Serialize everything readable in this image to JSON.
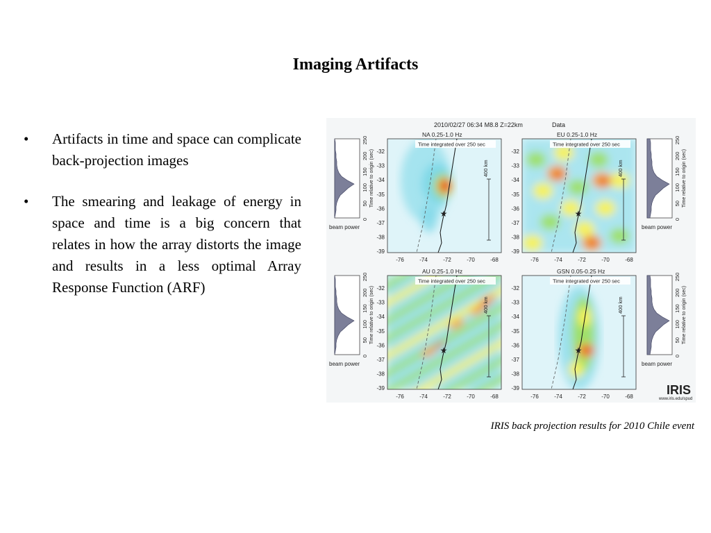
{
  "slide": {
    "title": "Imaging Artifacts",
    "bullets": [
      {
        "marker": "•",
        "text": "Artifacts in time and space can complicate back-projection images"
      },
      {
        "marker": "•",
        "text": "The smearing and leakage of energy in space and time is a big concern that relates in how the array distorts the image and results in a less optimal Array Response Function (ARF)"
      }
    ],
    "caption": "IRIS back projection results for 2010 Chile  event"
  },
  "figure": {
    "header": "2010/02/27 06:34  M8.8  Z=22km",
    "header_right": "Data",
    "integrated_label": "Time integrated over 250 sec",
    "scale_label": "400 km",
    "beam_power_label": "beam power",
    "time_axis_label": "Time relative to origin (sec)",
    "time_ticks": [
      "0",
      "50",
      "100",
      "150",
      "200",
      "250"
    ],
    "lat_ticks": [
      "-32",
      "-33",
      "-34",
      "-35",
      "-36",
      "-37",
      "-38",
      "-39"
    ],
    "lon_ticks": [
      "-76",
      "-74",
      "-72",
      "-70",
      "-68"
    ],
    "logo_text": "IRIS",
    "logo_url_text": "www.iris.edu/spud",
    "panels": [
      {
        "id": "na",
        "label": "NA  0.25-1.0 Hz",
        "pattern": "blob"
      },
      {
        "id": "eu",
        "label": "EU  0.25-1.0 Hz",
        "pattern": "noisy"
      },
      {
        "id": "au",
        "label": "AU  0.25-1.0 Hz",
        "pattern": "stripes"
      },
      {
        "id": "gsn",
        "label": "GSN  0.05-0.25 Hz",
        "pattern": "vertical"
      }
    ],
    "colors": {
      "low": "#dff4f9",
      "mid": "#7fd8e8",
      "green": "#9ee06a",
      "yellow": "#f7f25a",
      "orange": "#f59a2a",
      "red": "#e4201c"
    }
  }
}
